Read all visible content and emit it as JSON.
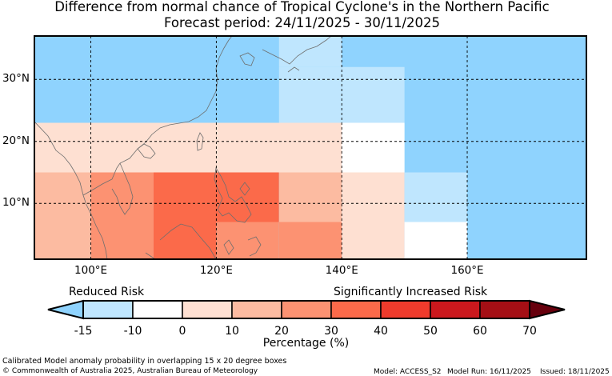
{
  "title": "Difference from normal chance of Tropical Cyclone's in the Northern Pacific",
  "subtitle": "Forecast period: 24/11/2025 - 30/11/2025",
  "axes": {
    "lat_labels": [
      {
        "lat": 30,
        "text": "30°N"
      },
      {
        "lat": 20,
        "text": "20°N"
      },
      {
        "lat": 10,
        "text": "10°N"
      }
    ],
    "lon_labels": [
      {
        "lon": 100,
        "text": "100°E"
      },
      {
        "lon": 120,
        "text": "120°E"
      },
      {
        "lon": 140,
        "text": "140°E"
      },
      {
        "lon": 160,
        "text": "160°E"
      }
    ],
    "lon_range": [
      91,
      179
    ],
    "lat_range": [
      1,
      37
    ]
  },
  "colors": {
    "below_minus10": "#8fd3fe",
    "minus10_to_0": "#bfe6fe",
    "zero_to_10": "#ffffff",
    "ten_to_20": "#fee0d2",
    "twenty_to_30": "#fcbba1",
    "thirty_to_40": "#fc9272",
    "forty_to_50": "#fb6a4a",
    "fifty_to_60": "#ef3b2c",
    "sixty_to_70": "#cb181d",
    "seventy_plus": "#a50f15",
    "above_max": "#67000d"
  },
  "grid_cells": [
    {
      "lon": [
        91,
        179
      ],
      "lat": [
        1,
        37
      ],
      "band": "below_minus10"
    },
    {
      "lon": [
        130,
        140
      ],
      "lat": [
        22,
        32
      ],
      "band": "minus10_to_0"
    },
    {
      "lon": [
        140,
        150
      ],
      "lat": [
        15,
        32
      ],
      "band": "minus10_to_0"
    },
    {
      "lon": [
        130,
        140
      ],
      "lat": [
        32,
        37
      ],
      "band": "minus10_to_0"
    },
    {
      "lon": [
        91,
        140
      ],
      "lat": [
        15,
        23
      ],
      "band": "ten_to_20"
    },
    {
      "lon": [
        140,
        150
      ],
      "lat": [
        15,
        23
      ],
      "band": "zero_to_10"
    },
    {
      "lon": [
        91,
        100
      ],
      "lat": [
        1,
        15
      ],
      "band": "twenty_to_30"
    },
    {
      "lon": [
        100,
        110
      ],
      "lat": [
        1,
        15
      ],
      "band": "thirty_to_40"
    },
    {
      "lon": [
        110,
        130
      ],
      "lat": [
        7,
        15
      ],
      "band": "forty_to_50"
    },
    {
      "lon": [
        110,
        120
      ],
      "lat": [
        1,
        7
      ],
      "band": "forty_to_50"
    },
    {
      "lon": [
        120,
        130
      ],
      "lat": [
        1,
        7
      ],
      "band": "thirty_to_40"
    },
    {
      "lon": [
        130,
        140
      ],
      "lat": [
        7,
        15
      ],
      "band": "twenty_to_30"
    },
    {
      "lon": [
        130,
        140
      ],
      "lat": [
        1,
        7
      ],
      "band": "thirty_to_40"
    },
    {
      "lon": [
        140,
        150
      ],
      "lat": [
        1,
        15
      ],
      "band": "ten_to_20"
    },
    {
      "lon": [
        150,
        160
      ],
      "lat": [
        7,
        15
      ],
      "band": "minus10_to_0"
    },
    {
      "lon": [
        150,
        160
      ],
      "lat": [
        1,
        7
      ],
      "band": "zero_to_10"
    }
  ],
  "colorbar": {
    "reduced_label": "Reduced Risk",
    "increased_label": "Significantly Increased Risk",
    "ticks": [
      "-15",
      "-10",
      "0",
      "10",
      "20",
      "30",
      "40",
      "50",
      "60",
      "70"
    ],
    "bands": [
      "minus10_to_0",
      "zero_to_10",
      "ten_to_20",
      "twenty_to_30",
      "thirty_to_40",
      "forty_to_50",
      "fifty_to_60",
      "sixty_to_70",
      "seventy_plus"
    ],
    "low_extend": "below_minus10",
    "high_extend": "above_max",
    "title": "Percentage (%)"
  },
  "footer": {
    "note": "Calibrated Model anomaly probability in overlapping 15 x 20 degree boxes",
    "copyright": "© Commonwealth of Australia 2025, Australian Bureau of Meteorology",
    "model": "Model: ACCESS_S2",
    "model_run": "Model Run: 16/11/2025",
    "issued": "Issued: 18/11/2025"
  }
}
